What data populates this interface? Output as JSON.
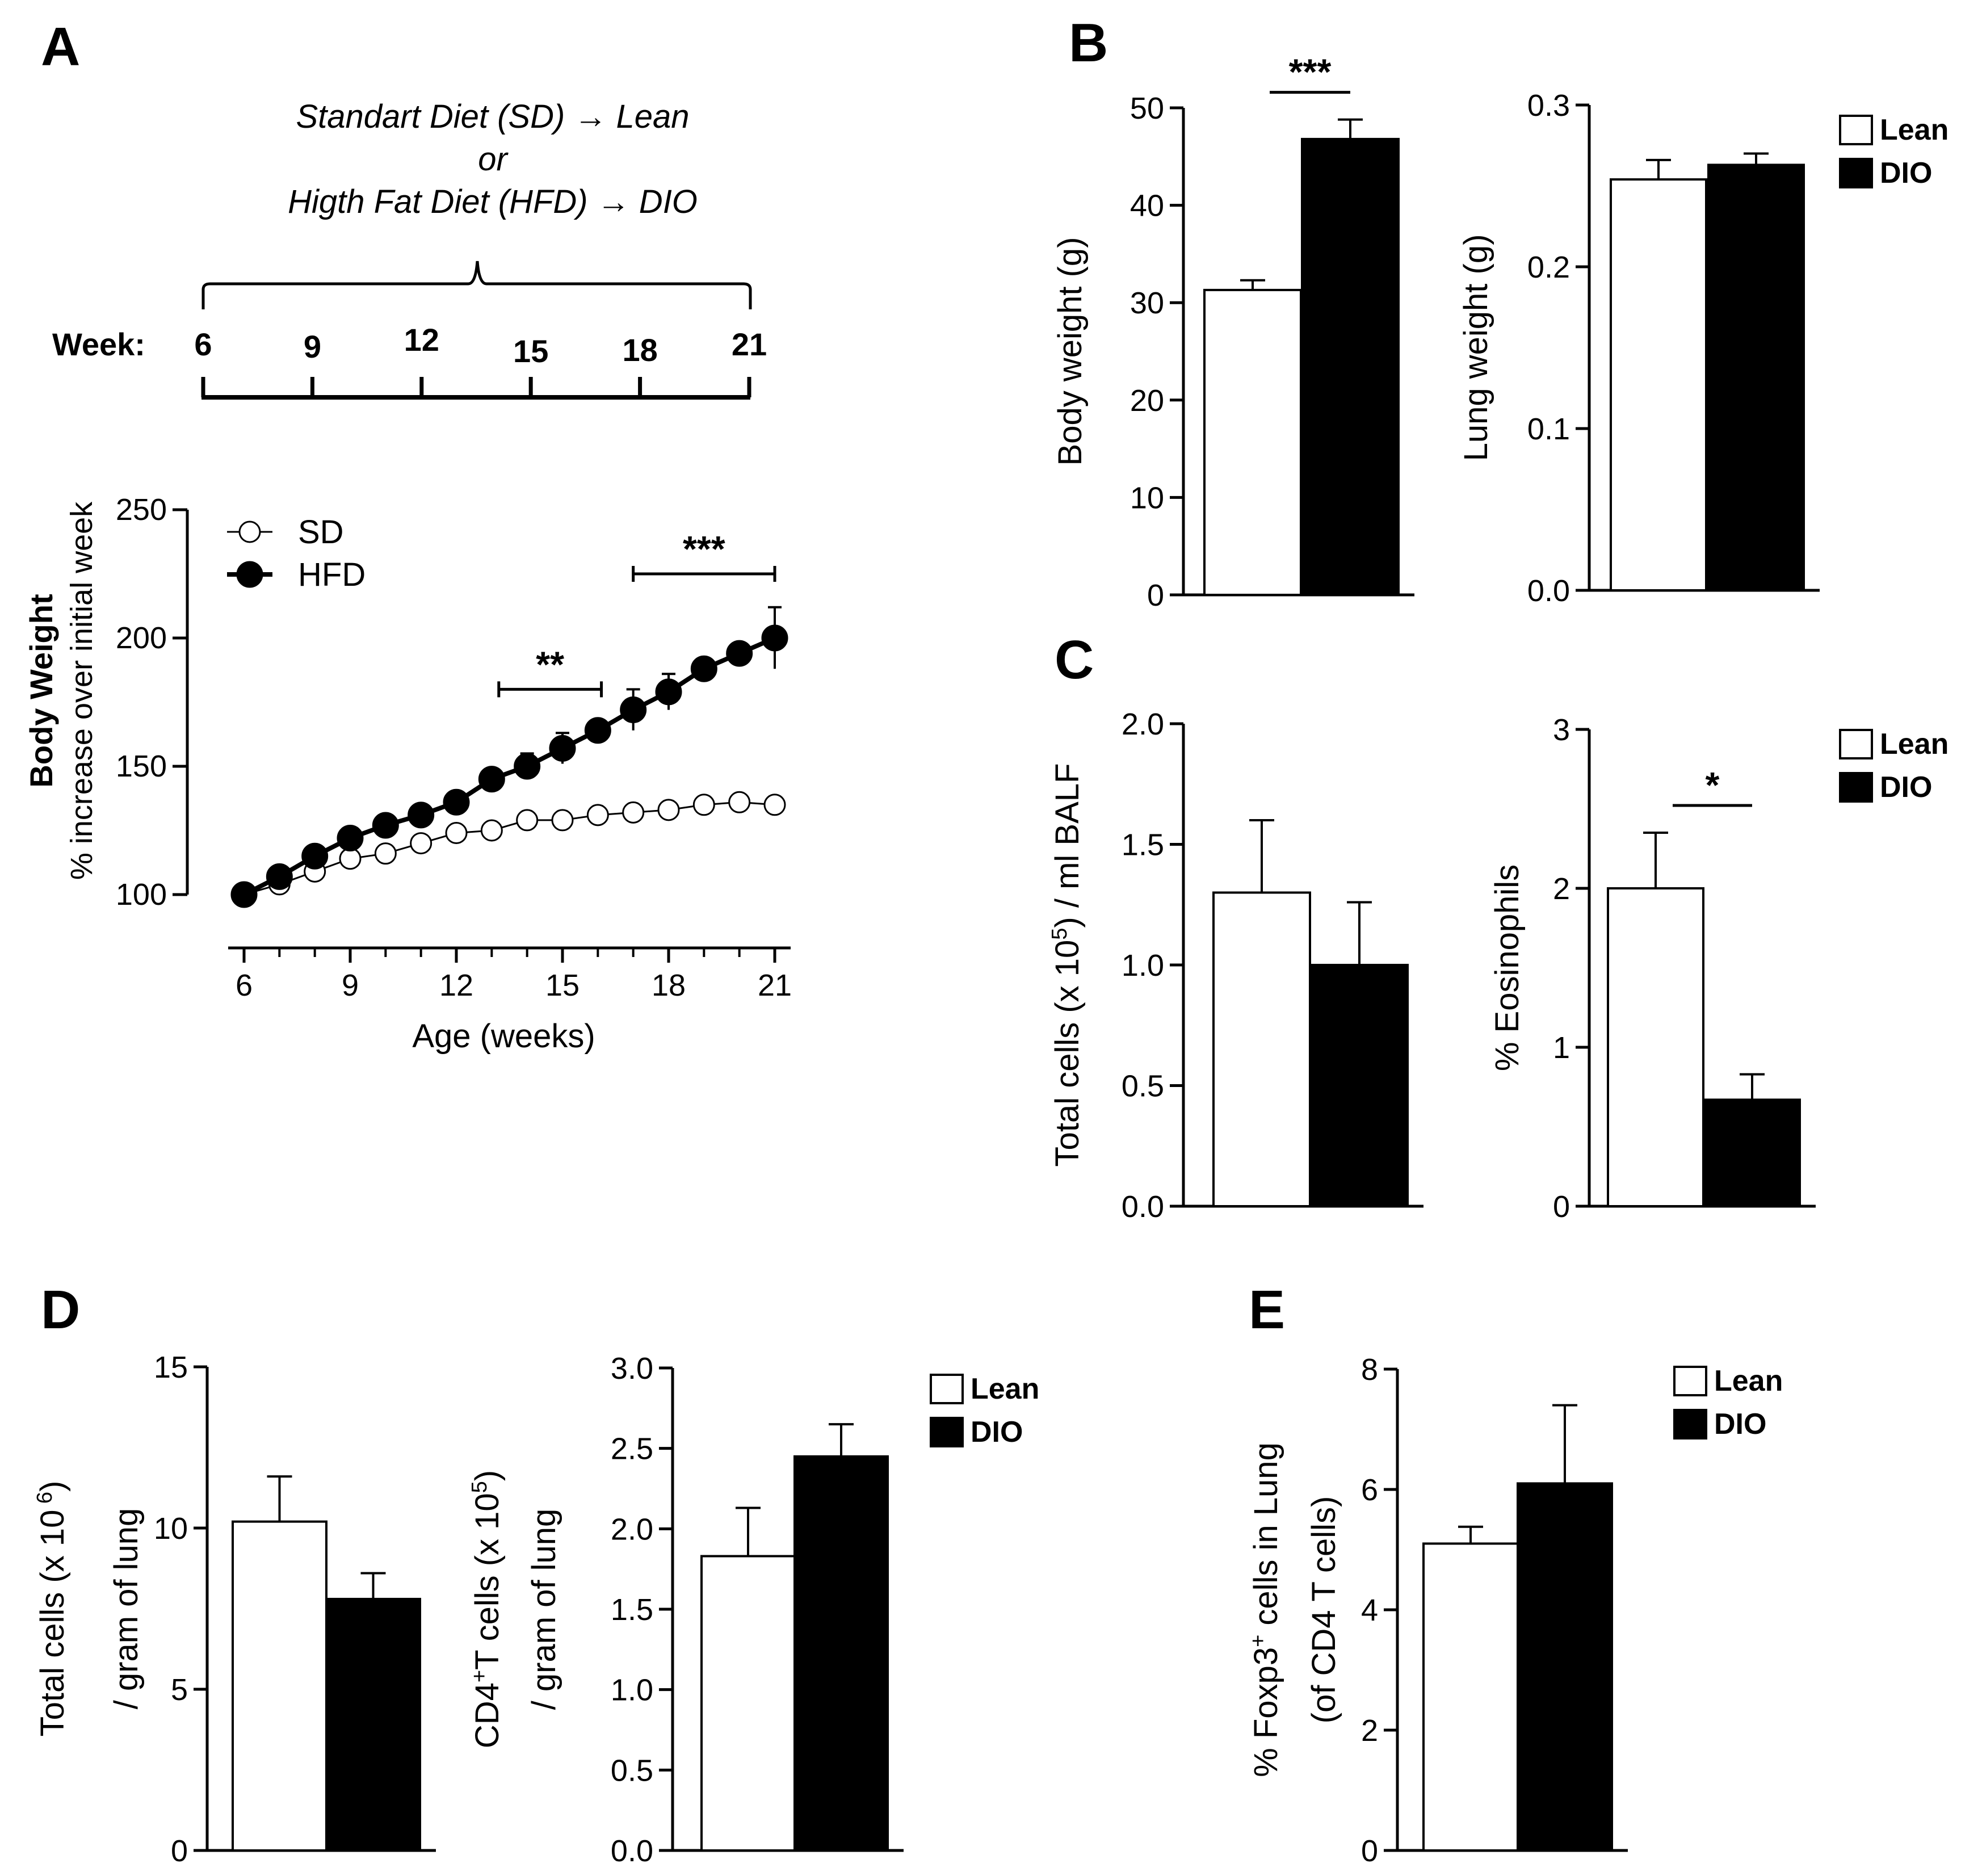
{
  "panels": {
    "A": "A",
    "B": "B",
    "C": "C",
    "D": "D",
    "E": "E"
  },
  "colors": {
    "lean": "#ffffff",
    "dio": "#000000",
    "stroke": "#000000"
  },
  "diet_scheme": {
    "line1": "Standart Diet (SD) → Lean",
    "line2": "or",
    "line3": "Higth Fat Diet (HFD) → DIO",
    "week_label": "Week:",
    "weeks": [
      "6",
      "9",
      "12",
      "15",
      "18",
      "21"
    ]
  },
  "legend_bar": {
    "lean": "Lean",
    "dio": "DIO"
  },
  "chart_data": [
    {
      "id": "A",
      "type": "line",
      "xlabel": "Age (weeks)",
      "ylabel_main": "Body Weight",
      "ylabel_sub": "% increase over initial week",
      "ylim": [
        100,
        250
      ],
      "yticks": [
        "100",
        "150",
        "200",
        "250"
      ],
      "xlim": [
        6,
        21
      ],
      "xticks": [
        "6",
        "9",
        "12",
        "15",
        "18",
        "21"
      ],
      "x": [
        6,
        7,
        8,
        9,
        10,
        11,
        12,
        13,
        14,
        15,
        16,
        17,
        18,
        19,
        20,
        21
      ],
      "series": [
        {
          "name": "SD",
          "marker": "open",
          "values": [
            100,
            104,
            109,
            114,
            116,
            120,
            124,
            125,
            129,
            129,
            131,
            132,
            133,
            135,
            136,
            135
          ],
          "errors": [
            1,
            1.5,
            1.5,
            2,
            2,
            2,
            2,
            2,
            2,
            2,
            2,
            2,
            2,
            2,
            2,
            2
          ]
        },
        {
          "name": "HFD",
          "marker": "filled",
          "values": [
            100,
            107,
            115,
            122,
            127,
            131,
            136,
            145,
            150,
            157,
            164,
            172,
            179,
            188,
            194,
            200
          ],
          "errors": [
            1,
            1.5,
            3,
            4,
            3,
            3,
            3,
            3,
            5,
            6,
            4,
            8,
            7,
            4,
            4,
            12
          ]
        }
      ],
      "annotations": [
        {
          "label": "**",
          "x1": 13.2,
          "x2": 16.1,
          "y": 180
        },
        {
          "label": "***",
          "x1": 17.0,
          "x2": 21.0,
          "y": 225
        }
      ]
    },
    {
      "id": "B1",
      "type": "bar",
      "ylabel": "Body weight (g)",
      "ylim": [
        0,
        50
      ],
      "yticks": [
        "0",
        "10",
        "20",
        "30",
        "40",
        "50"
      ],
      "categories": [
        "Lean",
        "DIO"
      ],
      "values": [
        31.3,
        46.8
      ],
      "errors": [
        1.0,
        2.0
      ],
      "significance": "***"
    },
    {
      "id": "B2",
      "type": "bar",
      "ylabel": "Lung weight (g)",
      "ylim": [
        0,
        0.3
      ],
      "yticks": [
        "0.0",
        "0.1",
        "0.2",
        "0.3"
      ],
      "categories": [
        "Lean",
        "DIO"
      ],
      "values": [
        0.254,
        0.263
      ],
      "errors": [
        0.012,
        0.007
      ]
    },
    {
      "id": "C1",
      "type": "bar",
      "ylabel": "Total cells (x 10",
      "ylabel_sup": "5",
      "ylabel_rest": ") / ml BALF",
      "ylim": [
        0,
        2.0
      ],
      "yticks": [
        "0.0",
        "0.5",
        "1.0",
        "1.5",
        "2.0"
      ],
      "categories": [
        "Lean",
        "DIO"
      ],
      "values": [
        1.3,
        1.0
      ],
      "errors": [
        0.3,
        0.26
      ]
    },
    {
      "id": "C2",
      "type": "bar",
      "ylabel": "% Eosinophils",
      "ylim": [
        0,
        3
      ],
      "yticks": [
        "0",
        "1",
        "2",
        "3"
      ],
      "categories": [
        "Lean",
        "DIO"
      ],
      "values": [
        2.0,
        0.67
      ],
      "errors": [
        0.35,
        0.16
      ],
      "significance": "*"
    },
    {
      "id": "D1",
      "type": "bar",
      "ylabel": "Total cells (x 10",
      "ylabel_sup": " 6",
      "ylabel_rest": ")",
      "ylabel2": "/ gram of lung",
      "ylim": [
        0,
        15
      ],
      "yticks": [
        "0",
        "5",
        "10",
        "15"
      ],
      "categories": [
        "Lean",
        "DIO"
      ],
      "values": [
        10.2,
        7.8
      ],
      "errors": [
        1.4,
        0.8
      ]
    },
    {
      "id": "D2",
      "type": "bar",
      "ylabel": "CD4",
      "ylabel_sup": "+",
      "ylabel_rest": "T cells (x 10",
      "ylabel_sup2": "5",
      "ylabel_rest2": ")",
      "ylabel2": "/ gram of lung",
      "ylim": [
        0,
        3.0
      ],
      "yticks": [
        "0.0",
        "0.5",
        "1.0",
        "1.5",
        "2.0",
        "2.5",
        "3.0"
      ],
      "categories": [
        "Lean",
        "DIO"
      ],
      "values": [
        1.83,
        2.45
      ],
      "errors": [
        0.3,
        0.2
      ]
    },
    {
      "id": "E",
      "type": "bar",
      "ylabel": "% Foxp3",
      "ylabel_sup": "+",
      "ylabel_rest": " cells in Lung",
      "ylabel2": "(of CD4 T cells)",
      "ylim": [
        0,
        8
      ],
      "yticks": [
        "0",
        "2",
        "4",
        "6",
        "8"
      ],
      "categories": [
        "Lean",
        "DIO"
      ],
      "values": [
        5.1,
        6.1
      ],
      "errors": [
        0.28,
        1.3
      ]
    }
  ]
}
